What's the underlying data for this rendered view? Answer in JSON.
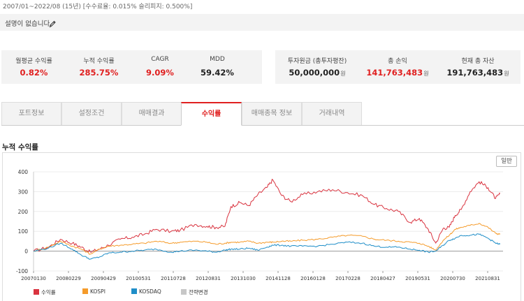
{
  "header": {
    "subtitle": "2007/01~2022/08 (15년) [수수료율: 0.015% 슬리피지: 0.500%]",
    "description": "설명이 없습니다."
  },
  "stats_left": [
    {
      "label": "월평균 수익률",
      "value": "0.82%",
      "color": "#e02020"
    },
    {
      "label": "누적 수익률",
      "value": "285.75%",
      "color": "#e02020"
    },
    {
      "label": "CAGR",
      "value": "9.09%",
      "color": "#e02020"
    },
    {
      "label": "MDD",
      "value": "59.42%",
      "color": "#222222"
    }
  ],
  "stats_right": [
    {
      "label": "투자원금 (총투자평잔)",
      "value": "50,000,000",
      "unit": "원",
      "color": "#222222"
    },
    {
      "label": "총 손익",
      "value": "141,763,483",
      "unit": "원",
      "color": "#e02020"
    },
    {
      "label": "현재 총 자산",
      "value": "191,763,483",
      "unit": "원",
      "color": "#222222"
    }
  ],
  "tabs": [
    {
      "label": "포트정보",
      "active": false
    },
    {
      "label": "설정조건",
      "active": false
    },
    {
      "label": "매매결과",
      "active": false
    },
    {
      "label": "수익률",
      "active": true
    },
    {
      "label": "매매종목 정보",
      "active": false
    },
    {
      "label": "거래내역",
      "active": false
    }
  ],
  "chart_section": {
    "title": "누적 수익률",
    "scale_button": "일반"
  },
  "chart_data": {
    "type": "line",
    "title": "누적 수익률",
    "xlabel": "",
    "ylabel": "",
    "ylim": [
      -100,
      400
    ],
    "yticks": [
      -100,
      0,
      100,
      200,
      300,
      400
    ],
    "x_tick_labels": [
      "20070130",
      "20080229",
      "20090429",
      "20100531",
      "20110728",
      "20120831",
      "20131030",
      "20141128",
      "20160128",
      "20170228",
      "20180427",
      "20190531",
      "20200730",
      "20210831"
    ],
    "grid": true,
    "legend_position": "bottom-left",
    "x_years": [
      2007.0,
      2007.5,
      2007.9,
      2008.3,
      2008.6,
      2008.9,
      2009.2,
      2009.5,
      2009.9,
      2010.3,
      2010.7,
      2011.1,
      2011.6,
      2011.9,
      2012.4,
      2012.8,
      2013.1,
      2013.4,
      2013.6,
      2013.9,
      2014.2,
      2014.5,
      2014.8,
      2015.0,
      2015.3,
      2015.6,
      2016.0,
      2016.5,
      2017.0,
      2017.5,
      2018.0,
      2018.4,
      2018.8,
      2019.2,
      2019.6,
      2019.9,
      2020.2,
      2020.45,
      2020.7,
      2020.9,
      2021.1,
      2021.3,
      2021.6,
      2021.9,
      2022.2,
      2022.45,
      2022.6
    ],
    "series": [
      {
        "name": "수익률",
        "color": "#d9333f",
        "values": [
          0,
          20,
          60,
          40,
          20,
          -5,
          10,
          30,
          60,
          70,
          85,
          110,
          100,
          105,
          135,
          125,
          120,
          125,
          225,
          245,
          230,
          285,
          320,
          360,
          280,
          250,
          285,
          300,
          310,
          295,
          280,
          235,
          215,
          200,
          145,
          165,
          110,
          40,
          115,
          120,
          180,
          210,
          300,
          350,
          320,
          265,
          290
        ]
      },
      {
        "name": "KOSPI",
        "color": "#f59b2a",
        "values": [
          0,
          20,
          50,
          25,
          10,
          -15,
          10,
          25,
          30,
          35,
          40,
          50,
          40,
          45,
          50,
          45,
          35,
          40,
          45,
          45,
          50,
          40,
          45,
          45,
          50,
          50,
          55,
          60,
          70,
          80,
          75,
          60,
          55,
          50,
          45,
          40,
          25,
          5,
          55,
          80,
          110,
          120,
          130,
          140,
          120,
          90,
          85
        ]
      },
      {
        "name": "KOSDAQ",
        "color": "#1f8ec8",
        "values": [
          0,
          15,
          40,
          10,
          -20,
          -40,
          -30,
          -10,
          -5,
          0,
          5,
          10,
          -5,
          0,
          5,
          0,
          -5,
          5,
          10,
          10,
          15,
          5,
          20,
          30,
          30,
          25,
          25,
          25,
          35,
          45,
          40,
          25,
          20,
          20,
          10,
          5,
          -5,
          0,
          30,
          55,
          65,
          80,
          80,
          85,
          65,
          40,
          35
        ]
      },
      {
        "name": "전략변경",
        "color": "#c7c7c7",
        "values": []
      }
    ]
  }
}
